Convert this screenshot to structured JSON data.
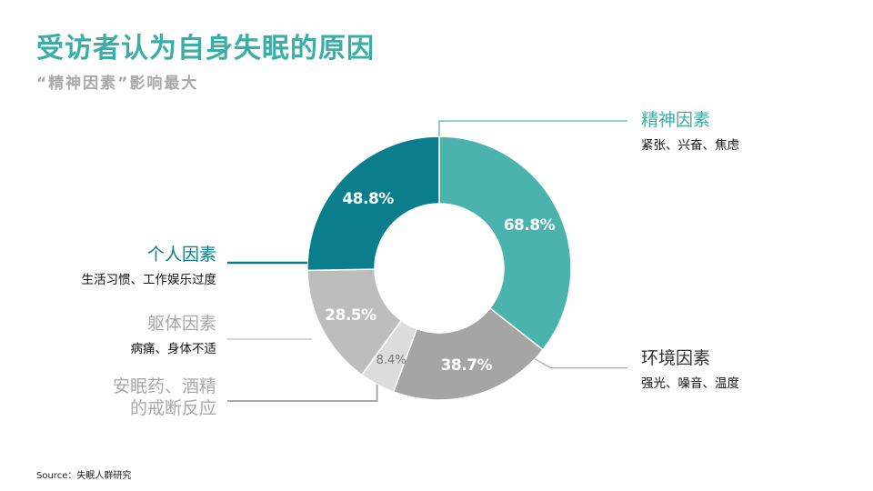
{
  "title": "受访者认为自身失眠的原因",
  "subtitle": "“精神因素”影响最大",
  "source": "Source：失眠人群研究",
  "chart_data": {
    "type": "pie",
    "variant": "donut",
    "title": "受访者认为自身失眠的原因",
    "subtitle": "“精神因素”影响最大",
    "unit": "%",
    "categories": [
      "精神因素",
      "环境因素",
      "安眠药、酒精的戒断反应",
      "躯体因素",
      "个人因素"
    ],
    "values": [
      68.8,
      38.7,
      8.4,
      28.5,
      48.8
    ],
    "value_labels": [
      "68.8%",
      "38.7%",
      "8.4%",
      "28.5%",
      "48.8%"
    ],
    "descriptions": [
      "紧张、兴奋、焦虑",
      "强光、噪音、温度",
      "",
      "病痛、身体不适",
      "生活习惯、工作娱乐过度"
    ],
    "label_lines": [
      [
        "精神因素"
      ],
      [
        "环境因素"
      ],
      [
        "安眠药、酒精",
        "的戒断反应"
      ],
      [
        "躯体因素"
      ],
      [
        "个人因素"
      ]
    ],
    "colors": [
      "#4ab3ad",
      "#a5a5a5",
      "#dcdcdc",
      "#bdbdbd",
      "#0a7e8c"
    ],
    "label_colors": [
      "#3aaea6",
      "#333333",
      "#a8a8a8",
      "#a8a8a8",
      "#0a7e8c"
    ],
    "line_colors": [
      "#4ab3ad",
      "#a8a8a8",
      "#a8a8a8",
      "#bdbdbd",
      "#0a7e8c"
    ]
  }
}
